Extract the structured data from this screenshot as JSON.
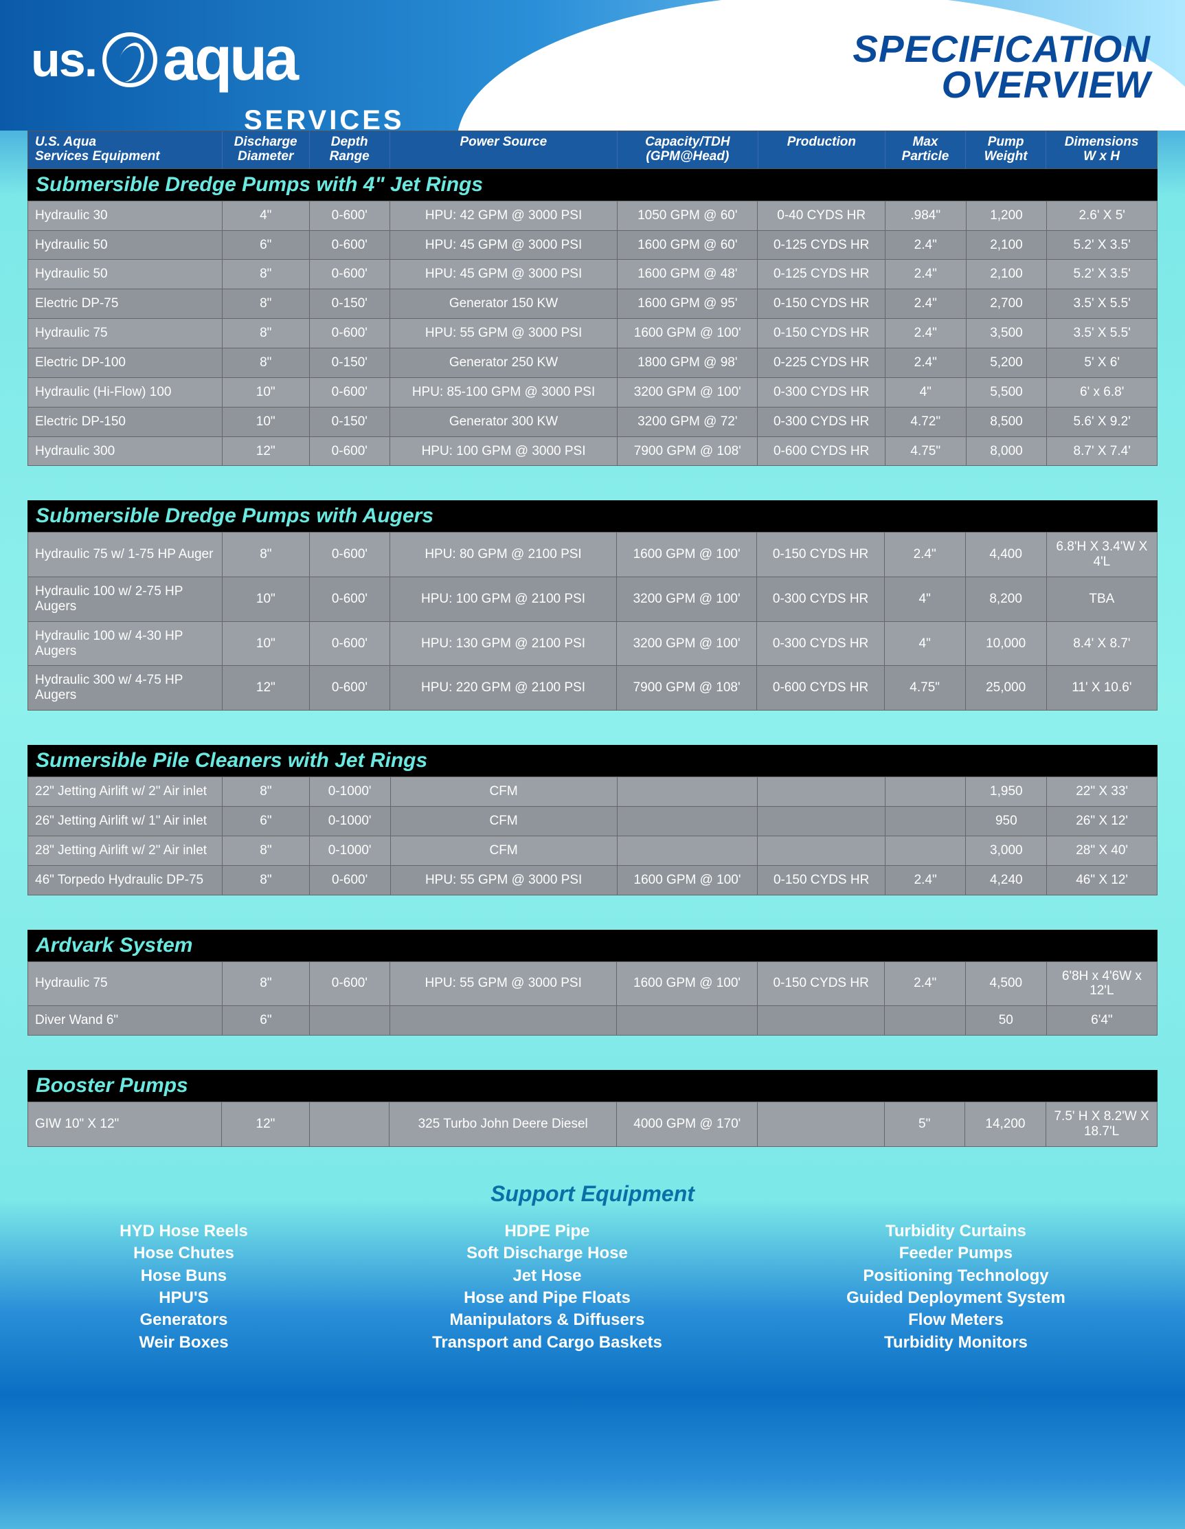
{
  "brand": {
    "us": "us.",
    "aqua": "aqua",
    "services": "SERVICES"
  },
  "page_title_1": "SPECIFICATION",
  "page_title_2": "OVERVIEW",
  "columns": [
    "U.S. Aqua\nServices Equipment",
    "Discharge\nDiameter",
    "Depth\nRange",
    "Power Source",
    "Capacity/TDH\n(GPM@Head)",
    "Production",
    "Max\nParticle",
    "Pump\nWeight",
    "Dimensions\nW x H"
  ],
  "groups": [
    {
      "title": "Submersible Dredge Pumps with 4\" Jet Rings",
      "rows": [
        [
          "Hydraulic 30",
          "4\"",
          "0-600'",
          "HPU: 42 GPM @ 3000 PSI",
          "1050 GPM @ 60'",
          "0-40 CYDS HR",
          ".984\"",
          "1,200",
          "2.6' X 5'"
        ],
        [
          "Hydraulic 50",
          "6\"",
          "0-600'",
          "HPU: 45 GPM @ 3000 PSI",
          "1600 GPM @ 60'",
          "0-125 CYDS HR",
          "2.4\"",
          "2,100",
          "5.2' X 3.5'"
        ],
        [
          "Hydraulic 50",
          "8\"",
          "0-600'",
          "HPU: 45 GPM @ 3000 PSI",
          "1600 GPM @ 48'",
          "0-125 CYDS HR",
          "2.4\"",
          "2,100",
          "5.2' X 3.5'"
        ],
        [
          "Electric DP-75",
          "8\"",
          "0-150'",
          "Generator 150 KW",
          "1600 GPM @ 95'",
          "0-150 CYDS HR",
          "2.4\"",
          "2,700",
          "3.5' X 5.5'"
        ],
        [
          "Hydraulic 75",
          "8\"",
          "0-600'",
          "HPU: 55 GPM @ 3000 PSI",
          "1600 GPM @ 100'",
          "0-150 CYDS HR",
          "2.4\"",
          "3,500",
          "3.5' X 5.5'"
        ],
        [
          "Electric DP-100",
          "8\"",
          "0-150'",
          "Generator 250 KW",
          "1800 GPM @ 98'",
          "0-225 CYDS HR",
          "2.4\"",
          "5,200",
          "5' X 6'"
        ],
        [
          "Hydraulic (Hi-Flow) 100",
          "10\"",
          "0-600'",
          "HPU: 85-100 GPM @ 3000 PSI",
          "3200 GPM @ 100'",
          "0-300 CYDS HR",
          "4\"",
          "5,500",
          "6' x 6.8'"
        ],
        [
          "Electric DP-150",
          "10\"",
          "0-150'",
          "Generator 300 KW",
          "3200 GPM @ 72'",
          "0-300 CYDS HR",
          "4.72\"",
          "8,500",
          "5.6' X 9.2'"
        ],
        [
          "Hydraulic 300",
          "12\"",
          "0-600'",
          "HPU: 100 GPM @ 3000 PSI",
          "7900 GPM @ 108'",
          "0-600 CYDS HR",
          "4.75\"",
          "8,000",
          "8.7' X 7.4'"
        ]
      ]
    },
    {
      "title": "Submersible Dredge Pumps with Augers",
      "rows": [
        [
          "Hydraulic 75 w/ 1-75 HP Auger",
          "8\"",
          "0-600'",
          "HPU: 80 GPM @ 2100 PSI",
          "1600 GPM @ 100'",
          "0-150 CYDS HR",
          "2.4\"",
          "4,400",
          "6.8'H X 3.4'W X 4'L"
        ],
        [
          "Hydraulic 100 w/ 2-75 HP Augers",
          "10\"",
          "0-600'",
          "HPU: 100 GPM @ 2100 PSI",
          "3200 GPM @ 100'",
          "0-300 CYDS HR",
          "4\"",
          "8,200",
          "TBA"
        ],
        [
          "Hydraulic 100 w/ 4-30 HP Augers",
          "10\"",
          "0-600'",
          "HPU: 130 GPM @ 2100 PSI",
          "3200 GPM @ 100'",
          "0-300 CYDS HR",
          "4\"",
          "10,000",
          "8.4' X 8.7'"
        ],
        [
          "Hydraulic 300 w/ 4-75 HP Augers",
          "12\"",
          "0-600'",
          "HPU: 220 GPM @ 2100 PSI",
          "7900 GPM @ 108'",
          "0-600 CYDS HR",
          "4.75\"",
          "25,000",
          "11' X 10.6'"
        ]
      ]
    },
    {
      "title": "Sumersible Pile Cleaners with Jet Rings",
      "rows": [
        [
          "22\" Jetting Airlift w/ 2\" Air inlet",
          "8\"",
          "0-1000'",
          "CFM",
          "",
          "",
          "",
          "1,950",
          "22\" X 33'"
        ],
        [
          "26\" Jetting Airlift w/ 1\" Air inlet",
          "6\"",
          "0-1000'",
          "CFM",
          "",
          "",
          "",
          "950",
          "26\" X 12'"
        ],
        [
          "28\" Jetting Airlift w/ 2\" Air inlet",
          "8\"",
          "0-1000'",
          "CFM",
          "",
          "",
          "",
          "3,000",
          "28\" X 40'"
        ],
        [
          "46\" Torpedo Hydraulic DP-75",
          "8\"",
          "0-600'",
          "HPU: 55 GPM @ 3000 PSI",
          "1600 GPM @ 100'",
          "0-150 CYDS HR",
          "2.4\"",
          "4,240",
          "46\" X 12'"
        ]
      ]
    },
    {
      "title": "Ardvark System",
      "rows": [
        [
          "Hydraulic 75",
          "8\"",
          "0-600'",
          "HPU: 55 GPM @ 3000 PSI",
          "1600 GPM @ 100'",
          "0-150 CYDS HR",
          "2.4\"",
          "4,500",
          "6'8H x 4'6W x 12'L"
        ],
        [
          "Diver Wand 6\"",
          "6\"",
          "",
          "",
          "",
          "",
          "",
          "50",
          "6'4\""
        ]
      ]
    },
    {
      "title": "Booster Pumps",
      "rows": [
        [
          "GIW 10\" X 12\"",
          "12\"",
          "",
          "325 Turbo John Deere Diesel",
          "4000 GPM @ 170'",
          "",
          "5\"",
          "14,200",
          "7.5' H X 8.2'W X 18.7'L"
        ]
      ]
    }
  ],
  "support_title": "Support Equipment",
  "support_cols": [
    [
      "HYD Hose Reels",
      "Hose Chutes",
      "Hose Buns",
      "HPU'S",
      "Generators",
      "Weir Boxes"
    ],
    [
      "HDPE Pipe",
      "Soft Discharge Hose",
      "Jet Hose",
      "Hose and Pipe Floats",
      "Manipulators & Diffusers",
      "Transport and Cargo Baskets"
    ],
    [
      "Turbidity Curtains",
      "Feeder Pumps",
      "Positioning Technology",
      "Guided Deployment System",
      "Flow Meters",
      "Turbidity Monitors"
    ]
  ],
  "colors": {
    "header_grad_start": "#0a5aa8",
    "header_grad_end": "#aee8ff",
    "group_bg": "#000000",
    "group_text": "#6be8e0",
    "colhdr_bg": "#1a5aa0",
    "table_bg": "#9aa0a6",
    "cell_text": "#ffffff",
    "spec_title": "#0a4a9a"
  }
}
